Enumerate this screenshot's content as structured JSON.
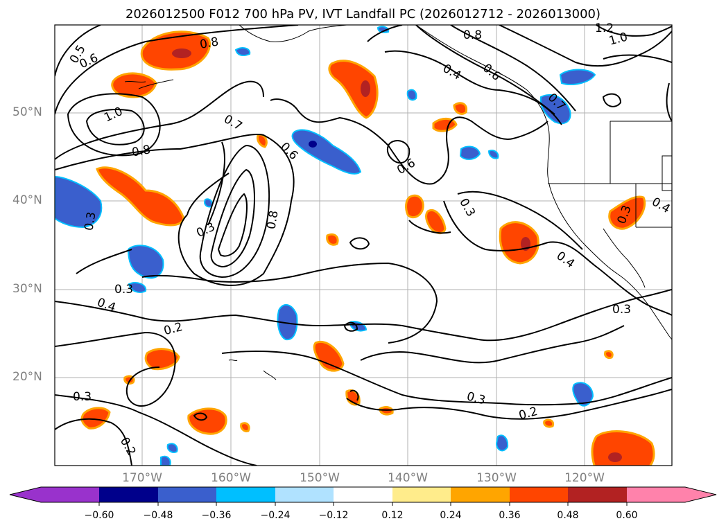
{
  "title": "2026012500 F012 700 hPa PV, IVT Landfall PC (2026012712 - 2026013000)",
  "latitude_labels": [
    "50°N",
    "40°N",
    "30°N",
    "20°N"
  ],
  "longitude_labels": [
    "170°W",
    "160°W",
    "150°W",
    "140°W",
    "130°W",
    "120°W"
  ],
  "pv_contour_labels": [
    "0.5",
    "0.6",
    "1.0",
    "0.8",
    "0.8",
    "0.8",
    "1.2",
    "1.0",
    "0.4",
    "0.6",
    "0.7",
    "0.7",
    "0.6",
    "0.6",
    "0.3",
    "0.8",
    "0.3",
    "0.3",
    "0.4",
    "0.4",
    "0.3",
    "0.3",
    "0.2",
    "0.3",
    "0.3",
    "0.2",
    "0.2",
    "0.4",
    "0.3"
  ],
  "colorbar": {
    "ticks": [
      "−0.60",
      "−0.48",
      "−0.36",
      "−0.24",
      "−0.12",
      "0.12",
      "0.24",
      "0.36",
      "0.48",
      "0.60"
    ],
    "colors": [
      "#9932cc",
      "#00008b",
      "#3a5fcd",
      "#00bfff",
      "#b0e2ff",
      "#ffffff",
      "#ffec8b",
      "#ffa500",
      "#ff4500",
      "#b22222",
      "#ff82ab"
    ]
  }
}
